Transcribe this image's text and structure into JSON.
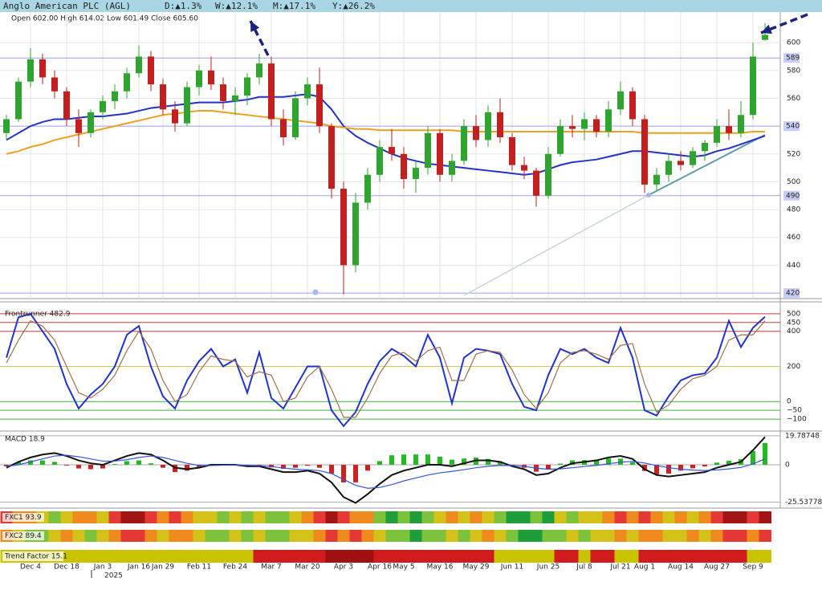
{
  "header": {
    "title": "Anglo American PLC (AGL)",
    "changes": [
      "D:▲1.3%",
      "W:▲12.1%",
      "M:▲17.1%",
      "Y:▲26.2%"
    ]
  },
  "chart_data": {
    "type": "candlestick",
    "info": "Open 602.00  High 614.02  Low 601.49  Close 605.60",
    "year_label": "2025",
    "categories": [
      null,
      null,
      "Dec 4",
      null,
      null,
      "Dec 18",
      null,
      null,
      "Jan 3",
      null,
      null,
      "Jan 16",
      null,
      "Jan 29",
      null,
      null,
      "Feb 11",
      null,
      null,
      "Feb 24",
      null,
      null,
      "Mar 7",
      null,
      null,
      "Mar 20",
      null,
      null,
      "Apr 3",
      null,
      null,
      "Apr 16",
      null,
      "May 5",
      null,
      null,
      "May 16",
      null,
      null,
      "May 29",
      null,
      null,
      "Jun 11",
      null,
      null,
      "Jun 25",
      null,
      null,
      "Jul 8",
      null,
      null,
      "Jul 21",
      null,
      "Aug 1",
      null,
      null,
      "Aug 14",
      null,
      null,
      "Aug 27",
      null,
      null,
      "Sep 9",
      null
    ],
    "open": [
      535,
      545,
      572,
      588,
      575,
      565,
      545,
      535,
      550,
      558,
      565,
      578,
      590,
      570,
      552,
      542,
      568,
      580,
      570,
      558,
      562,
      575,
      585,
      545,
      532,
      560,
      570,
      540,
      495,
      440,
      485,
      505,
      525,
      520,
      502,
      510,
      535,
      505,
      515,
      540,
      530,
      550,
      532,
      512,
      508,
      490,
      520,
      540,
      538,
      545,
      536,
      552,
      565,
      545,
      498,
      505,
      515,
      512,
      522,
      528,
      540,
      535,
      548,
      602
    ],
    "high": [
      548,
      575,
      596,
      592,
      580,
      568,
      552,
      552,
      562,
      570,
      582,
      598,
      594,
      574,
      558,
      572,
      584,
      590,
      575,
      568,
      578,
      592,
      590,
      552,
      565,
      575,
      582,
      542,
      500,
      492,
      510,
      530,
      538,
      525,
      515,
      540,
      538,
      520,
      545,
      548,
      555,
      560,
      535,
      518,
      510,
      525,
      545,
      548,
      550,
      548,
      558,
      572,
      568,
      548,
      510,
      520,
      522,
      525,
      530,
      545,
      552,
      558,
      600,
      614.02
    ],
    "low": [
      530,
      543,
      568,
      570,
      560,
      540,
      525,
      532,
      545,
      552,
      560,
      575,
      565,
      548,
      536,
      540,
      562,
      566,
      552,
      548,
      555,
      570,
      540,
      526,
      530,
      555,
      535,
      488,
      419,
      435,
      480,
      500,
      515,
      495,
      492,
      505,
      500,
      500,
      512,
      525,
      525,
      528,
      508,
      502,
      482,
      488,
      518,
      532,
      530,
      532,
      532,
      548,
      540,
      492,
      494,
      500,
      508,
      510,
      515,
      525,
      530,
      532,
      545,
      601.49
    ],
    "close": [
      545,
      572,
      588,
      575,
      565,
      545,
      535,
      550,
      558,
      565,
      578,
      590,
      570,
      552,
      542,
      568,
      580,
      570,
      558,
      562,
      575,
      585,
      545,
      532,
      560,
      570,
      540,
      495,
      440,
      485,
      505,
      525,
      520,
      502,
      510,
      535,
      505,
      515,
      540,
      530,
      550,
      532,
      512,
      508,
      490,
      520,
      540,
      538,
      545,
      536,
      552,
      565,
      545,
      498,
      505,
      515,
      512,
      522,
      528,
      540,
      535,
      548,
      590,
      605.6
    ],
    "up_color": "#2fa52f",
    "down_color": "#c41e1e",
    "overlays": [
      {
        "color": "#2233cc",
        "values": [
          530,
          535,
          540,
          543,
          545,
          545,
          546,
          547,
          547,
          548,
          549,
          551,
          553,
          554,
          555,
          556,
          557,
          557,
          557,
          558,
          559,
          561,
          561,
          561,
          562,
          563,
          561,
          552,
          540,
          533,
          528,
          524,
          520,
          517,
          515,
          513,
          512,
          511,
          510,
          509,
          508,
          507,
          506,
          505,
          506,
          509,
          512,
          514,
          515,
          516,
          518,
          520,
          522,
          522,
          521,
          520,
          519,
          518,
          519,
          522,
          524,
          527,
          530,
          533
        ]
      },
      {
        "color": "#f0a020",
        "values": [
          520,
          522,
          525,
          527,
          530,
          532,
          534,
          536,
          538,
          540,
          542,
          544,
          546,
          548,
          549,
          550,
          551,
          551,
          550,
          549,
          548,
          547,
          546,
          545,
          544,
          543,
          542,
          540,
          539,
          538,
          538,
          537,
          537,
          537,
          537,
          537,
          537,
          537,
          536,
          536,
          536,
          536,
          536,
          536,
          536,
          536,
          536,
          536,
          536,
          536,
          536,
          536,
          536,
          535,
          535,
          535,
          535,
          535,
          535,
          535,
          535,
          535,
          536,
          536
        ]
      }
    ],
    "ylim": [
      416,
      622
    ],
    "yticks": [
      440,
      460,
      480,
      500,
      520,
      560,
      580,
      600
    ],
    "levels": [
      589,
      540,
      490,
      420
    ],
    "level_color": "#9aa0ea",
    "grid": true
  },
  "frontrunner": {
    "label": "Frontrunner 482.9",
    "ylim": [
      -159,
      536
    ],
    "yticks": [
      {
        "value": -100,
        "label": "−100"
      },
      {
        "value": -50,
        "label": "−50"
      },
      0,
      200,
      400,
      450,
      500
    ],
    "tick_colors": [
      "#3cb43c",
      "#3cb43c",
      "#3cb43c",
      "#d6c84a",
      "#c83c3c",
      "#c83c3c",
      "#c83c3c"
    ],
    "series": [
      {
        "color": "#2233cc",
        "values": [
          250,
          480,
          500,
          400,
          300,
          100,
          -40,
          40,
          100,
          200,
          380,
          430,
          200,
          30,
          -40,
          120,
          230,
          300,
          200,
          240,
          50,
          280,
          20,
          -40,
          80,
          200,
          200,
          -50,
          -140,
          -60,
          100,
          230,
          300,
          260,
          200,
          380,
          250,
          -10,
          250,
          300,
          290,
          270,
          100,
          -30,
          -50,
          150,
          300,
          270,
          300,
          250,
          220,
          420,
          250,
          -50,
          -80,
          30,
          120,
          150,
          160,
          250,
          460,
          310,
          420,
          482.9
        ]
      },
      {
        "color": "#a0704a",
        "values": [
          220,
          350,
          460,
          430,
          350,
          200,
          50,
          20,
          70,
          150,
          290,
          400,
          300,
          120,
          0,
          40,
          170,
          260,
          240,
          230,
          140,
          170,
          150,
          0,
          20,
          140,
          200,
          70,
          -90,
          -90,
          20,
          160,
          260,
          280,
          230,
          290,
          310,
          120,
          120,
          270,
          290,
          280,
          180,
          40,
          -40,
          50,
          220,
          280,
          290,
          270,
          240,
          320,
          330,
          100,
          -60,
          -20,
          70,
          130,
          150,
          200,
          350,
          380,
          380,
          460
        ]
      }
    ]
  },
  "macd": {
    "label": "MACD 18.9",
    "ylim": [
      -29,
      23
    ],
    "yticks": [
      19.78748,
      0,
      -25.53778
    ],
    "pos_color": "#22bb22",
    "neg_color": "#cc2222",
    "histogram": [
      -1,
      2,
      3,
      3,
      2,
      -0.5,
      -2.5,
      -3,
      -2.5,
      0.5,
      2.5,
      3,
      1,
      -2,
      -5,
      -4,
      -1.5,
      0.5,
      0.3,
      0.2,
      -0.6,
      -0.4,
      -1.8,
      -2.8,
      -2,
      -0.6,
      -2,
      -6,
      -12,
      -12,
      -4,
      2.5,
      6.5,
      7,
      7,
      7,
      5.5,
      3.5,
      4.3,
      5,
      4,
      2.4,
      -0.5,
      -2,
      -4.7,
      -3,
      0.8,
      3,
      3.2,
      3.4,
      4.3,
      4.2,
      1.7,
      -4.2,
      -6.5,
      -6,
      -4,
      -2.4,
      -1.1,
      1.5,
      2.8,
      3.8,
      9.4,
      14.9
    ],
    "series": [
      {
        "color": "#111111",
        "values": [
          -2,
          2,
          5,
          7,
          8,
          6,
          3,
          1,
          0,
          3,
          6,
          8,
          7,
          3,
          -2,
          -3,
          -2,
          0,
          0,
          0,
          -1,
          -1,
          -3,
          -5,
          -5,
          -4,
          -6,
          -12,
          -22,
          -26,
          -20,
          -13,
          -7,
          -4,
          -2,
          0,
          0,
          -1,
          1,
          3,
          3,
          2,
          -1,
          -3,
          -7,
          -6,
          -2,
          1,
          2,
          3,
          5,
          6,
          4,
          -3,
          -7,
          -8,
          -7,
          -6,
          -5,
          -2,
          0,
          2,
          10,
          18.9
        ]
      },
      {
        "color": "#3355dd",
        "values": [
          -1,
          0,
          2,
          4,
          6,
          6.5,
          5.5,
          4,
          2.5,
          2.5,
          3.5,
          5,
          6,
          5,
          3,
          1,
          -0.5,
          -0.5,
          -0.3,
          -0.2,
          -0.4,
          -0.6,
          -1.2,
          -2.2,
          -3,
          -3.4,
          -4,
          -6,
          -10,
          -14,
          -16,
          -15.5,
          -13.5,
          -11,
          -9,
          -7,
          -5.5,
          -4.5,
          -3.3,
          -2,
          -1,
          -0.4,
          -0.5,
          -1,
          -2.3,
          -3,
          -2.8,
          -2,
          -1.2,
          -0.4,
          0.7,
          1.8,
          2.3,
          1.2,
          -0.5,
          -2,
          -3,
          -3.6,
          -3.9,
          -3.5,
          -2.8,
          -1.8,
          0.6,
          4
        ]
      }
    ]
  },
  "strips": [
    {
      "label": "FXC1 93.9",
      "colors": [
        "#e53935",
        "#ef8a1f",
        "#ef8a1f",
        "#d4c21a",
        "#7cc23a",
        "#d4c21a",
        "#ef8a1f",
        "#ef8a1f",
        "#d4c21a",
        "#e53935",
        "#a31515",
        "#a31515",
        "#e53935",
        "#ef8a1f",
        "#e53935",
        "#ef8a1f",
        "#d4c21a",
        "#d4c21a",
        "#7cc23a",
        "#d4c21a",
        "#7cc23a",
        "#d4c21a",
        "#7cc23a",
        "#7cc23a",
        "#d4c21a",
        "#ef8a1f",
        "#e53935",
        "#a31515",
        "#e53935",
        "#ef8a1f",
        "#ef8a1f",
        "#7cc23a",
        "#1e9e3a",
        "#7cc23a",
        "#1e9e3a",
        "#7cc23a",
        "#d4c21a",
        "#ef8a1f",
        "#d4c21a",
        "#ef8a1f",
        "#d4c21a",
        "#7cc23a",
        "#1e9e3a",
        "#1e9e3a",
        "#7cc23a",
        "#1e9e3a",
        "#d4c21a",
        "#7cc23a",
        "#d4c21a",
        "#d4c21a",
        "#ef8a1f",
        "#e53935",
        "#ef8a1f",
        "#e53935",
        "#ef8a1f",
        "#d4c21a",
        "#ef8a1f",
        "#d4c21a",
        "#ef8a1f",
        "#e53935",
        "#a31515",
        "#a31515",
        "#e53935",
        "#a31515"
      ]
    },
    {
      "label": "FXC2 89.4",
      "colors": [
        "#ef8a1f",
        "#d4c21a",
        "#7cc23a",
        "#7cc23a",
        "#d4c21a",
        "#ef8a1f",
        "#d4c21a",
        "#7cc23a",
        "#d4c21a",
        "#ef8a1f",
        "#e53935",
        "#e53935",
        "#ef8a1f",
        "#d4c21a",
        "#ef8a1f",
        "#ef8a1f",
        "#d4c21a",
        "#7cc23a",
        "#7cc23a",
        "#d4c21a",
        "#7cc23a",
        "#d4c21a",
        "#7cc23a",
        "#7cc23a",
        "#d4c21a",
        "#d4c21a",
        "#ef8a1f",
        "#e53935",
        "#ef8a1f",
        "#e53935",
        "#ef8a1f",
        "#d4c21a",
        "#7cc23a",
        "#7cc23a",
        "#1e9e3a",
        "#7cc23a",
        "#7cc23a",
        "#d4c21a",
        "#7cc23a",
        "#d4c21a",
        "#ef8a1f",
        "#d4c21a",
        "#7cc23a",
        "#1e9e3a",
        "#1e9e3a",
        "#7cc23a",
        "#7cc23a",
        "#d4c21a",
        "#7cc23a",
        "#d4c21a",
        "#d4c21a",
        "#ef8a1f",
        "#d4c21a",
        "#ef8a1f",
        "#ef8a1f",
        "#d4c21a",
        "#d4c21a",
        "#ef8a1f",
        "#d4c21a",
        "#ef8a1f",
        "#e53935",
        "#e53935",
        "#ef8a1f",
        "#e53935"
      ]
    },
    {
      "label": "Trend Factor 15.1",
      "colors": [
        "#c8c400",
        "#c8c400",
        "#c8c400",
        "#c8c400",
        "#c8c400",
        "#c8c400",
        "#c8c400",
        "#c8c400",
        "#c8c400",
        "#c8c400",
        "#c8c400",
        "#c8c400",
        "#c8c400",
        "#c8c400",
        "#c8c400",
        "#c8c400",
        "#c8c400",
        "#c8c400",
        "#c8c400",
        "#c8c400",
        "#c8c400",
        "#d01c1c",
        "#d01c1c",
        "#d01c1c",
        "#d01c1c",
        "#d01c1c",
        "#d01c1c",
        "#a01010",
        "#a01010",
        "#a01010",
        "#a01010",
        "#d01c1c",
        "#d01c1c",
        "#d01c1c",
        "#d01c1c",
        "#d01c1c",
        "#d01c1c",
        "#d01c1c",
        "#d01c1c",
        "#d01c1c",
        "#d01c1c",
        "#c8c400",
        "#c8c400",
        "#c8c400",
        "#c8c400",
        "#c8c400",
        "#d01c1c",
        "#d01c1c",
        "#c8c400",
        "#d01c1c",
        "#d01c1c",
        "#c8c400",
        "#c8c400",
        "#d01c1c",
        "#d01c1c",
        "#d01c1c",
        "#d01c1c",
        "#d01c1c",
        "#d01c1c",
        "#d01c1c",
        "#d01c1c",
        "#d01c1c",
        "#c8c400",
        "#c8c400"
      ]
    }
  ]
}
